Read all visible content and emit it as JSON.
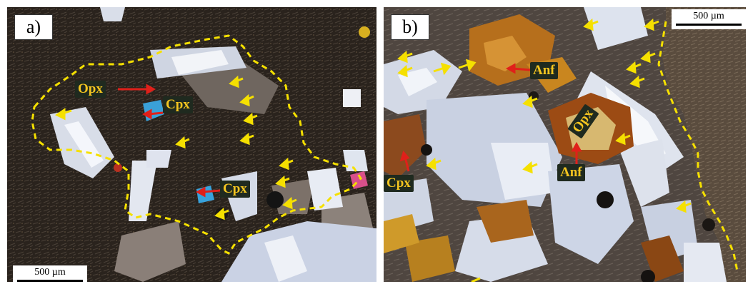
{
  "panels": [
    {
      "letter": "a)",
      "scale_bar": "500 µm",
      "scale_bar_position": "bottom-left",
      "labels": [
        "Opx",
        "Cpx",
        "Cpx"
      ]
    },
    {
      "letter": "b)",
      "scale_bar": "500 µm",
      "scale_bar_position": "top-right",
      "labels": [
        "Anf",
        "Opx",
        "Anf",
        "Cpx"
      ]
    }
  ],
  "colors": {
    "outline": "#f5e000",
    "arrow": "#f5e000",
    "pointer": "#e0201a",
    "label_text": "#f3c520",
    "label_bg": "#1f2a1f"
  }
}
